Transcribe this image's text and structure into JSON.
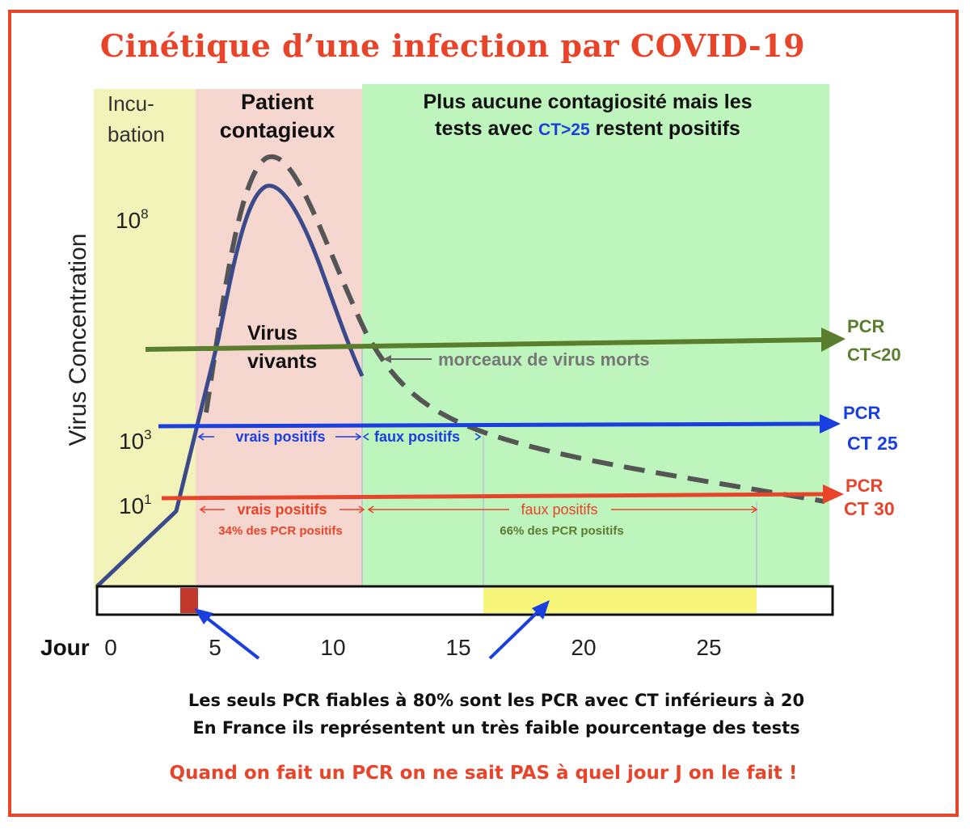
{
  "title": "Cinétique d’une infection par COVID-19",
  "phases": {
    "incubation": {
      "line1": "Incu-",
      "line2": "bation",
      "color": "#f2f3b8"
    },
    "contagious": {
      "line1": "Patient",
      "line2": "contagieux",
      "color": "#f6d7cf"
    },
    "noncontagious": {
      "line1": "Plus aucune contagiosité mais les",
      "line2_pre": "tests avec ",
      "line2_ct": "CT>25",
      "line2_post": " restent positifs",
      "color": "#bdf5bc"
    }
  },
  "yaxis": {
    "label": "Virus Concentration",
    "tick_1e8": "10",
    "tick_1e3": "10",
    "tick_1e1": "10",
    "exp_8": "8",
    "exp_3": "3",
    "exp_1": "1"
  },
  "labels": {
    "living": {
      "line1": "Virus",
      "line2": "vivants"
    },
    "dead": "morceaux de virus morts",
    "ct25_true": "vrais positifs",
    "ct25_false": "faux positifs",
    "ct30_true": "vrais positifs",
    "ct30_false": "faux positifs",
    "pct_true": "34% des PCR positifs",
    "pct_false": "66% des PCR positifs"
  },
  "pcr": {
    "ct20": {
      "line1": "PCR",
      "line2": "CT<20",
      "color": "#5a7d2e"
    },
    "ct25": {
      "line1": "PCR",
      "line2": "CT 25",
      "color": "#1a3fe0"
    },
    "ct30": {
      "line1": "PCR",
      "line2": "CT 30",
      "color": "#e8442a"
    }
  },
  "xaxis": {
    "prefix": "Jour",
    "ticks": [
      "0",
      "5",
      "10",
      "15",
      "20",
      "25"
    ]
  },
  "bottom": {
    "line1": "Les seuls PCR fiables à 80% sont les PCR avec CT inférieurs à 20",
    "line2": "En France ils représentent un très faible pourcentage des tests",
    "line3": "Quand on fait un PCR on ne sait PAS à quel jour J on le fait !"
  },
  "colors": {
    "accent": "#e8442a",
    "curve": "#3a4a8a",
    "dashed": "#555555",
    "yellow": "#f7f57a",
    "marker": "#c0392b"
  }
}
